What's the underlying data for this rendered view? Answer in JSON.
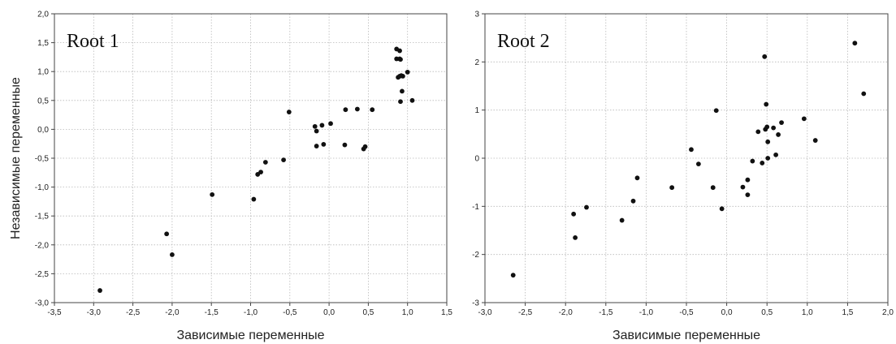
{
  "y_axis_label": "Независимые переменные",
  "chart_data": [
    {
      "type": "scatter",
      "annotation": "Root 1",
      "xlabel": "Зависимые переменные",
      "ylabel": "Независимые переменные",
      "xlim": [
        -3.5,
        1.5
      ],
      "ylim": [
        -3.0,
        2.0
      ],
      "xticks": [
        "-3,5",
        "-3,0",
        "-2,5",
        "-2,0",
        "-1,5",
        "-1,0",
        "-0,5",
        "0,0",
        "0,5",
        "1,0",
        "1,5"
      ],
      "yticks": [
        "-3,0",
        "-2,5",
        "-2,0",
        "-1,5",
        "-1,0",
        "-0,5",
        "0,0",
        "0,5",
        "1,0",
        "1,5",
        "2,0"
      ],
      "grid": true,
      "marker_color": "#111111",
      "x": [
        -2.92,
        -2.07,
        -2.0,
        -1.49,
        -0.96,
        -0.91,
        -0.87,
        -0.81,
        -0.58,
        -0.51,
        -0.18,
        -0.16,
        -0.16,
        -0.09,
        -0.07,
        0.02,
        0.2,
        0.21,
        0.36,
        0.44,
        0.46,
        0.55,
        0.86,
        0.86,
        0.88,
        0.9,
        0.9,
        0.9,
        0.91,
        0.91,
        0.92,
        0.93,
        0.94,
        1.0,
        1.06
      ],
      "y": [
        -2.79,
        -1.81,
        -2.17,
        -1.13,
        -1.21,
        -0.78,
        -0.74,
        -0.57,
        -0.53,
        0.3,
        0.05,
        -0.03,
        -0.29,
        0.07,
        -0.26,
        0.1,
        -0.27,
        0.34,
        0.35,
        -0.34,
        -0.3,
        0.34,
        1.22,
        1.39,
        0.9,
        0.92,
        1.22,
        1.36,
        0.48,
        1.21,
        0.93,
        0.66,
        0.92,
        0.99,
        0.5
      ]
    },
    {
      "type": "scatter",
      "annotation": "Root 2",
      "xlabel": "Зависимые переменные",
      "xlim": [
        -3.0,
        2.0
      ],
      "ylim": [
        -3,
        3
      ],
      "xticks": [
        "-3,0",
        "-2,5",
        "-2,0",
        "-1,5",
        "-1,0",
        "-0,5",
        "0,0",
        "0,5",
        "1,0",
        "1,5",
        "2,0"
      ],
      "yticks": [
        "-3",
        "-2",
        "-1",
        "0",
        "1",
        "2",
        "3"
      ],
      "grid": true,
      "marker_color": "#111111",
      "x": [
        -2.65,
        -1.9,
        -1.88,
        -1.74,
        -1.3,
        -1.16,
        -1.11,
        -0.68,
        -0.44,
        -0.35,
        -0.17,
        -0.13,
        -0.06,
        0.2,
        0.26,
        0.26,
        0.32,
        0.39,
        0.44,
        0.47,
        0.48,
        0.49,
        0.5,
        0.51,
        0.51,
        0.58,
        0.61,
        0.64,
        0.68,
        0.96,
        1.1,
        1.59,
        1.7
      ],
      "y": [
        -2.43,
        -1.16,
        -1.65,
        -1.02,
        -1.29,
        -0.89,
        -0.41,
        -0.61,
        0.18,
        -0.12,
        -0.61,
        0.99,
        -1.05,
        -0.6,
        -0.45,
        -0.76,
        -0.06,
        0.55,
        -0.1,
        2.11,
        0.6,
        1.12,
        0.65,
        0.34,
        0.0,
        0.63,
        0.07,
        0.49,
        0.74,
        0.82,
        0.37,
        2.39,
        1.34
      ]
    }
  ]
}
